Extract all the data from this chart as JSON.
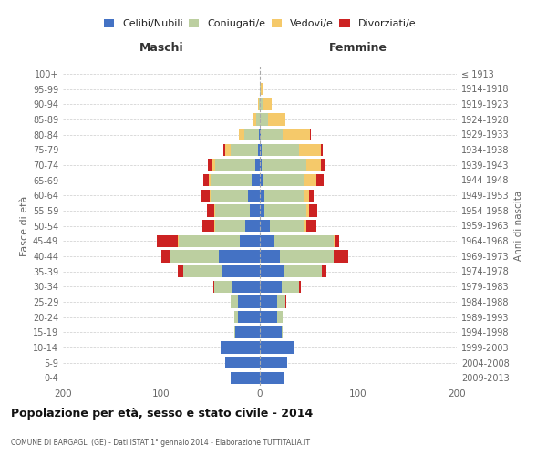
{
  "age_groups": [
    "0-4",
    "5-9",
    "10-14",
    "15-19",
    "20-24",
    "25-29",
    "30-34",
    "35-39",
    "40-44",
    "45-49",
    "50-54",
    "55-59",
    "60-64",
    "65-69",
    "70-74",
    "75-79",
    "80-84",
    "85-89",
    "90-94",
    "95-99",
    "100+"
  ],
  "birth_years": [
    "2009-2013",
    "2004-2008",
    "1999-2003",
    "1994-1998",
    "1989-1993",
    "1984-1988",
    "1979-1983",
    "1974-1978",
    "1969-1973",
    "1964-1968",
    "1959-1963",
    "1954-1958",
    "1949-1953",
    "1944-1948",
    "1939-1943",
    "1934-1938",
    "1929-1933",
    "1924-1928",
    "1919-1923",
    "1914-1918",
    "≤ 1913"
  ],
  "colors": {
    "celibi": "#4472c4",
    "coniugati": "#bccfa0",
    "vedovi": "#f5c96a",
    "divorziati": "#cc2222"
  },
  "maschi": {
    "celibi": [
      30,
      35,
      40,
      25,
      22,
      22,
      28,
      38,
      42,
      20,
      15,
      10,
      12,
      8,
      5,
      2,
      1,
      0,
      0,
      0,
      0
    ],
    "coniugati": [
      0,
      0,
      0,
      1,
      4,
      8,
      18,
      40,
      50,
      62,
      30,
      35,
      38,
      42,
      40,
      28,
      15,
      4,
      1,
      0,
      0
    ],
    "vedovi": [
      0,
      0,
      0,
      0,
      0,
      0,
      0,
      0,
      0,
      1,
      1,
      1,
      1,
      2,
      3,
      5,
      5,
      3,
      1,
      0,
      0
    ],
    "divorziati": [
      0,
      0,
      0,
      0,
      0,
      0,
      1,
      5,
      8,
      22,
      12,
      8,
      8,
      5,
      5,
      2,
      0,
      0,
      0,
      0,
      0
    ]
  },
  "femmine": {
    "nubili": [
      25,
      28,
      35,
      22,
      18,
      18,
      22,
      25,
      20,
      15,
      10,
      5,
      5,
      3,
      2,
      2,
      1,
      0,
      0,
      0,
      0
    ],
    "coniugate": [
      0,
      0,
      0,
      1,
      5,
      8,
      18,
      38,
      55,
      60,
      35,
      42,
      40,
      42,
      45,
      38,
      22,
      8,
      4,
      1,
      0
    ],
    "vedove": [
      0,
      0,
      0,
      0,
      0,
      0,
      0,
      0,
      0,
      1,
      2,
      3,
      5,
      12,
      15,
      22,
      28,
      18,
      8,
      2,
      0
    ],
    "divorziate": [
      0,
      0,
      0,
      0,
      0,
      1,
      2,
      5,
      15,
      5,
      10,
      8,
      5,
      8,
      5,
      2,
      1,
      0,
      0,
      0,
      0
    ]
  },
  "title": "Popolazione per età, sesso e stato civile - 2014",
  "subtitle": "COMUNE DI BARGAGLI (GE) - Dati ISTAT 1° gennaio 2014 - Elaborazione TUTTITALIA.IT",
  "ylabel_left": "Fasce di età",
  "ylabel_right": "Anni di nascita",
  "xlabel_maschi": "Maschi",
  "xlabel_femmine": "Femmine",
  "xlim": 200,
  "legend_labels": [
    "Celibi/Nubili",
    "Coniugati/e",
    "Vedovi/e",
    "Divorziati/e"
  ],
  "bg_color": "#ffffff"
}
